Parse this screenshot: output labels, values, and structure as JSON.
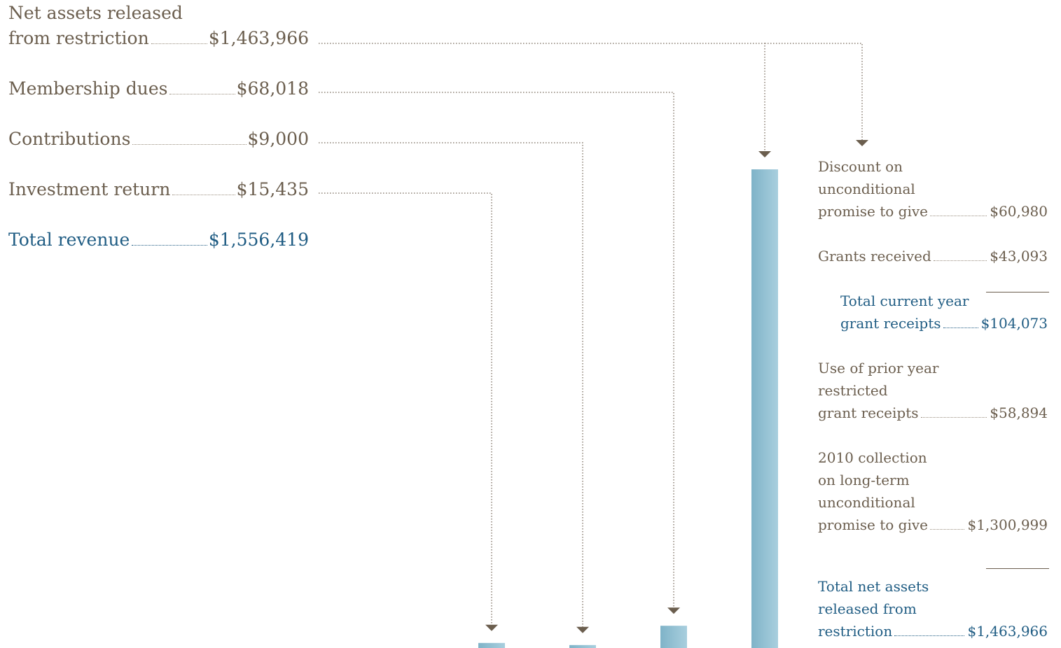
{
  "chart_data": {
    "type": "bar",
    "categories": [
      "Investment return",
      "Contributions",
      "Membership dues",
      "Net assets released from restriction"
    ],
    "values": [
      15435,
      9000,
      68018,
      1463966
    ],
    "total": {
      "label": "Total revenue",
      "value": 1556419
    }
  },
  "revenue": {
    "net_assets_label_line1": "Net assets released",
    "net_assets_label_line2": "from restriction",
    "net_assets_value": "$1,463,966",
    "membership_label": "Membership dues",
    "membership_value": "$68,018",
    "contributions_label": "Contributions",
    "contributions_value": "$9,000",
    "investment_label": "Investment return",
    "investment_value": "$15,435",
    "total_label": "Total revenue",
    "total_value": "$1,556,419"
  },
  "breakdown": {
    "discount_l1": "Discount on",
    "discount_l2": "unconditional",
    "discount_l3": "promise to give",
    "discount_value": "$60,980",
    "grants_label": "Grants received",
    "grants_value": "$43,093",
    "current_l1": "Total current year",
    "current_l2": "grant receipts",
    "current_value": "$104,073",
    "prior_l1": "Use of prior year",
    "prior_l2": "restricted",
    "prior_l3": "grant receipts",
    "prior_value": "$58,894",
    "collection_l1": "2010 collection",
    "collection_l2": "on long-term",
    "collection_l3": "unconditional",
    "collection_l4": "promise to give",
    "collection_value": "$1,300,999",
    "total_l1": "Total net assets",
    "total_l2": "released from",
    "total_l3": "restriction",
    "total_value": "$1,463,966"
  },
  "colors": {
    "text": "#6b5e4e",
    "accent": "#1f5c83",
    "bar_light": "#a9cfde",
    "bar_dark": "#7fb3c8",
    "connector": "#8a7f72"
  }
}
